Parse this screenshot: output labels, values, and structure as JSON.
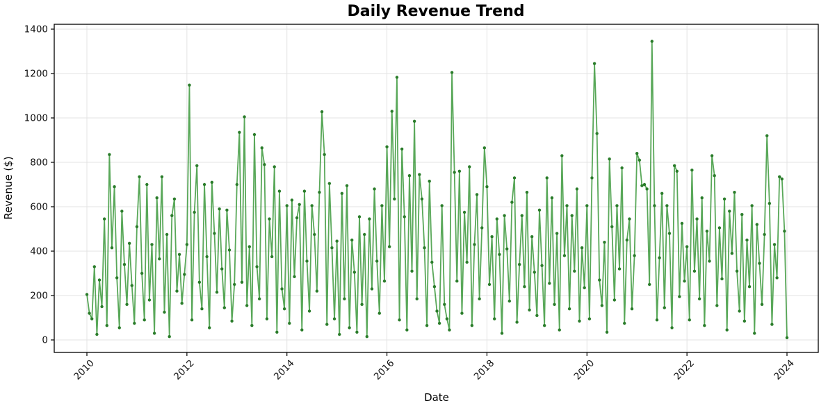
{
  "chart_data": {
    "type": "line",
    "title": "Daily Revenue Trend",
    "xlabel": "Date",
    "ylabel": "Revenue ($)",
    "series_name": "Daily Revenue",
    "x_start": 2010,
    "x_end": 2024,
    "points_per_year": 20,
    "xticks": [
      2010,
      2012,
      2014,
      2016,
      2018,
      2020,
      2022,
      2024
    ],
    "xtick_rotation": 45,
    "yticks": [
      0,
      200,
      400,
      600,
      800,
      1000,
      1200,
      1400
    ],
    "ylim": [
      0,
      1400
    ],
    "grid": true,
    "legend": "none",
    "marker": "circle",
    "line_color": "#228B22",
    "line_opacity": 0.75,
    "line_width": 1.8,
    "marker_color": "#2a7c2a",
    "marker_radius": 2.2,
    "grid_color": "#e3e3e3",
    "values": [
      205,
      120,
      95,
      330,
      25,
      270,
      150,
      545,
      65,
      835,
      415,
      690,
      280,
      55,
      580,
      340,
      160,
      435,
      245,
      75,
      510,
      735,
      300,
      90,
      700,
      180,
      430,
      30,
      640,
      365,
      735,
      125,
      475,
      15,
      560,
      635,
      220,
      385,
      165,
      295,
      430,
      1148,
      90,
      575,
      785,
      260,
      140,
      700,
      375,
      55,
      710,
      480,
      215,
      590,
      320,
      145,
      585,
      405,
      85,
      250,
      700,
      935,
      260,
      1005,
      155,
      420,
      65,
      925,
      330,
      185,
      865,
      790,
      95,
      545,
      375,
      780,
      35,
      670,
      230,
      140,
      605,
      75,
      630,
      285,
      550,
      610,
      45,
      670,
      355,
      130,
      605,
      475,
      220,
      665,
      1028,
      835,
      70,
      705,
      415,
      95,
      445,
      25,
      660,
      185,
      695,
      55,
      450,
      305,
      35,
      555,
      160,
      475,
      15,
      545,
      230,
      680,
      355,
      120,
      605,
      265,
      870,
      420,
      1030,
      635,
      1183,
      90,
      860,
      555,
      45,
      740,
      310,
      985,
      185,
      745,
      635,
      415,
      65,
      715,
      350,
      240,
      130,
      75,
      605,
      160,
      95,
      45,
      1205,
      755,
      265,
      760,
      120,
      575,
      350,
      780,
      65,
      430,
      655,
      185,
      505,
      865,
      690,
      250,
      465,
      95,
      545,
      385,
      30,
      560,
      410,
      175,
      620,
      730,
      80,
      340,
      560,
      240,
      665,
      135,
      465,
      305,
      110,
      585,
      335,
      65,
      730,
      255,
      640,
      160,
      480,
      45,
      830,
      380,
      605,
      140,
      560,
      310,
      680,
      85,
      415,
      235,
      605,
      95,
      730,
      1245,
      930,
      270,
      155,
      440,
      35,
      815,
      510,
      180,
      605,
      320,
      775,
      75,
      450,
      545,
      140,
      380,
      840,
      810,
      695,
      700,
      680,
      250,
      1345,
      605,
      90,
      370,
      660,
      145,
      605,
      480,
      55,
      785,
      760,
      195,
      525,
      265,
      420,
      90,
      765,
      310,
      545,
      185,
      640,
      65,
      490,
      355,
      830,
      740,
      155,
      505,
      275,
      635,
      45,
      580,
      390,
      665,
      310,
      130,
      565,
      85,
      450,
      240,
      605,
      30,
      520,
      345,
      160,
      475,
      920,
      615,
      70,
      430,
      280,
      735,
      725,
      490,
      10
    ]
  }
}
